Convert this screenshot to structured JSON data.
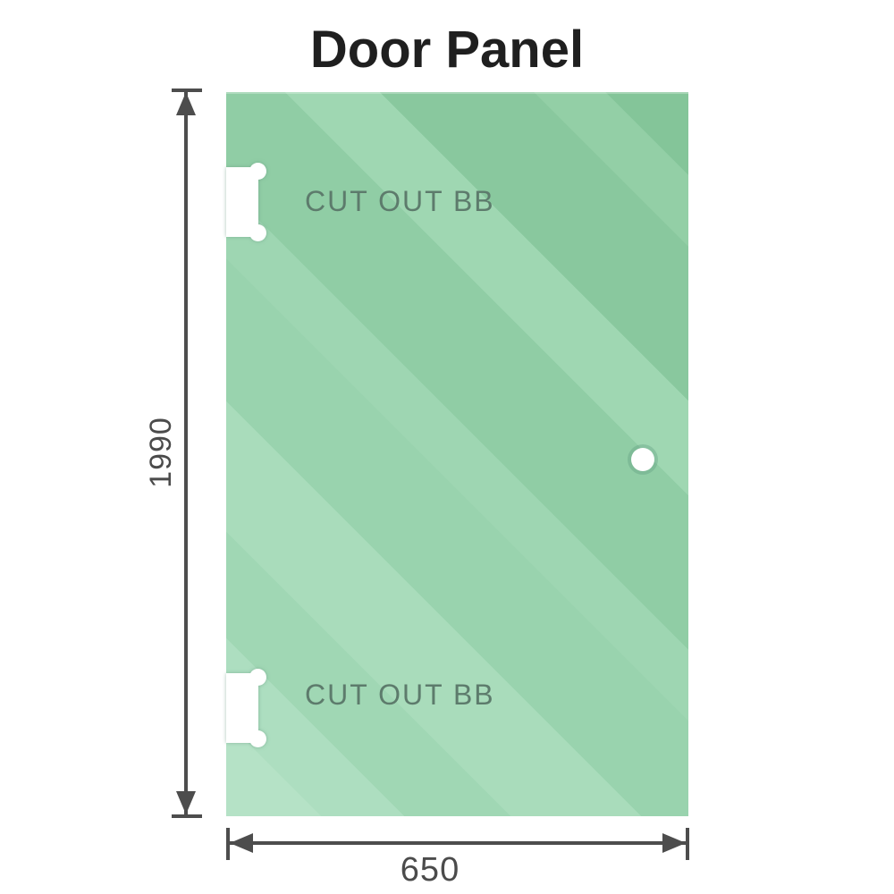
{
  "title": "Door Panel",
  "panel": {
    "name": "glass-door-panel",
    "cutouts": [
      {
        "label": "CUT OUT BB"
      },
      {
        "label": "CUT OUT BB"
      }
    ],
    "hole": {
      "name": "handle-hole"
    }
  },
  "dimensions": {
    "height_label": "1990",
    "width_label": "650"
  },
  "colors": {
    "background": "#ffffff",
    "title_text": "#1f1f1f",
    "glass_base": "#97d2ac",
    "glass_light": "#b5e2c6",
    "glass_dark": "#84c599",
    "cutout_label_text": "#5d7b6c",
    "dimension_line": "#4d4d4d",
    "dimension_text": "#4b4b4b"
  }
}
